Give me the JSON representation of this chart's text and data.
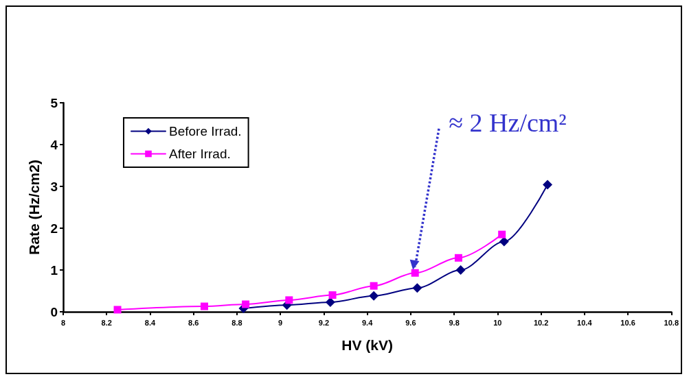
{
  "chart_data": {
    "type": "line",
    "xlabel": "HV (kV)",
    "ylabel": "Rate (Hz/cm2)",
    "xlim": [
      8,
      10.8
    ],
    "xticks": [
      8,
      8.2,
      8.4,
      8.6,
      8.8,
      9,
      9.2,
      9.4,
      9.6,
      9.8,
      10,
      10.2,
      10.4,
      10.6,
      10.8
    ],
    "ylim": [
      0,
      5
    ],
    "yticks": [
      0,
      1,
      2,
      3,
      4,
      5
    ],
    "grid": false,
    "legend": "top left",
    "series": [
      {
        "name": "Before Irrad.",
        "color": "#000080",
        "marker": "diamond",
        "x": [
          8.83,
          9.03,
          9.23,
          9.43,
          9.63,
          9.83,
          10.03,
          10.23
        ],
        "values": [
          0.08,
          0.16,
          0.23,
          0.38,
          0.57,
          1.0,
          1.68,
          3.04
        ]
      },
      {
        "name": "After Irrad.",
        "color": "#ff00ff",
        "marker": "square",
        "x": [
          8.25,
          8.65,
          8.84,
          9.04,
          9.24,
          9.43,
          9.62,
          9.82,
          10.02
        ],
        "values": [
          0.05,
          0.13,
          0.18,
          0.28,
          0.4,
          0.62,
          0.93,
          1.29,
          1.85
        ]
      }
    ],
    "annotations": [
      {
        "text": "≈ 2 Hz/cm²",
        "x": 9.62,
        "y": 0.93
      }
    ]
  }
}
